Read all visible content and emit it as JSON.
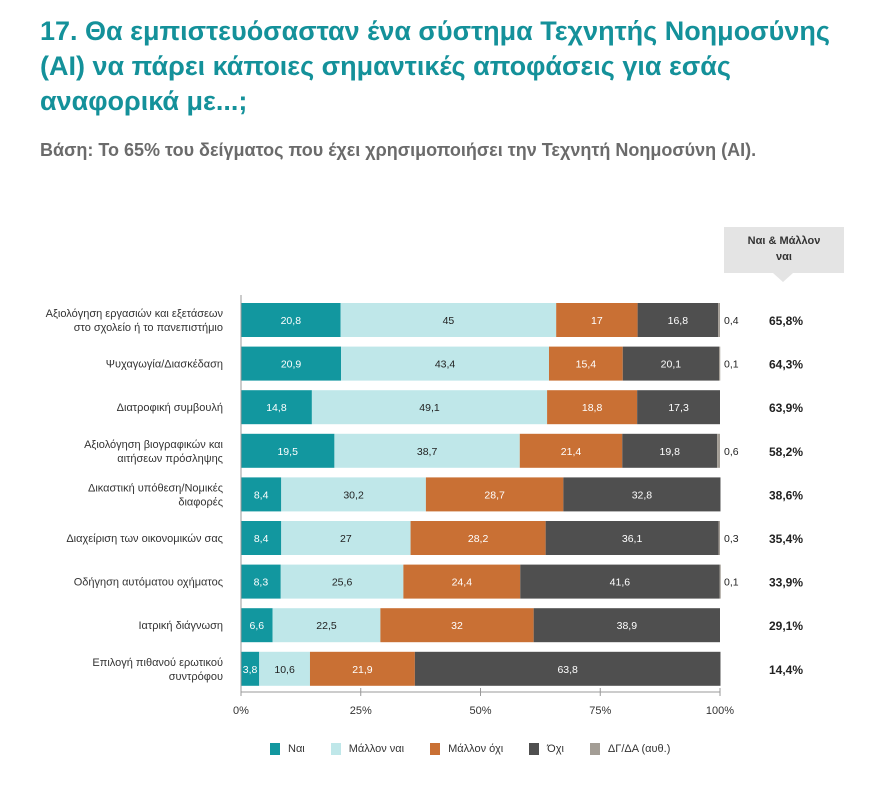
{
  "title": "17. Θα εμπιστευόσασταν ένα σύστημα Τεχνητής Νοημοσύνης (AI) να πάρει κάποιες σημαντικές αποφάσεις για εσάς αναφορικά με...;",
  "subtitle": "Βάση: Το 65% του δείγματος που έχει χρησιμοποιήσει την Τεχνητή Νοημοσύνη (AI).",
  "summary_header": "Ναι & Μάλλον ναι",
  "chart_data": {
    "type": "bar",
    "orientation": "horizontal",
    "stacked": true,
    "categories": [
      [
        "Αξιολόγηση εργασιών και εξετάσεων",
        "στο σχολείο ή το πανεπιστήμιο"
      ],
      [
        "Ψυχαγωγία/Διασκέδαση"
      ],
      [
        "Διατροφική συμβουλή"
      ],
      [
        "Αξιολόγηση βιογραφικών και",
        "αιτήσεων πρόσληψης"
      ],
      [
        "Δικαστική υπόθεση/Νομικές",
        "διαφορές"
      ],
      [
        "Διαχείριση των οικονομικών σας"
      ],
      [
        "Οδήγηση αυτόματου οχήματος"
      ],
      [
        "Ιατρική διάγνωση"
      ],
      [
        "Επιλογή πιθανού ερωτικού",
        "συντρόφου"
      ]
    ],
    "series": [
      {
        "name": "Ναι",
        "color": "#12979f",
        "label_color": "#ffffff",
        "values": [
          20.8,
          20.9,
          14.8,
          19.5,
          8.4,
          8.4,
          8.3,
          6.6,
          3.8
        ]
      },
      {
        "name": "Μάλλον ναι",
        "color": "#bfe7e9",
        "label_color": "#222222",
        "values": [
          45,
          43.4,
          49.1,
          38.7,
          30.2,
          27,
          25.6,
          22.5,
          10.6
        ]
      },
      {
        "name": "Μάλλον όχι",
        "color": "#c97034",
        "label_color": "#ffffff",
        "values": [
          17,
          15.4,
          18.8,
          21.4,
          28.7,
          28.2,
          24.4,
          32,
          21.9
        ]
      },
      {
        "name": "Όχι",
        "color": "#4f4f4f",
        "label_color": "#ffffff",
        "values": [
          16.8,
          20.1,
          17.3,
          19.8,
          32.8,
          36.1,
          41.6,
          38.9,
          63.8
        ]
      },
      {
        "name": "ΔΓ/ΔΑ (αυθ.)",
        "color": "#a39d95",
        "label_color": "#222222",
        "values": [
          0.4,
          0.1,
          null,
          0.6,
          null,
          0.3,
          0.1,
          null,
          null
        ]
      }
    ],
    "summary": [
      "65,8%",
      "64,3%",
      "63,9%",
      "58,2%",
      "38,6%",
      "35,4%",
      "33,9%",
      "29,1%",
      "14,4%"
    ],
    "xlim": [
      0,
      100
    ],
    "xticks": [
      "0%",
      "25%",
      "50%",
      "75%",
      "100%"
    ],
    "grid": false,
    "legend": "bottom"
  }
}
